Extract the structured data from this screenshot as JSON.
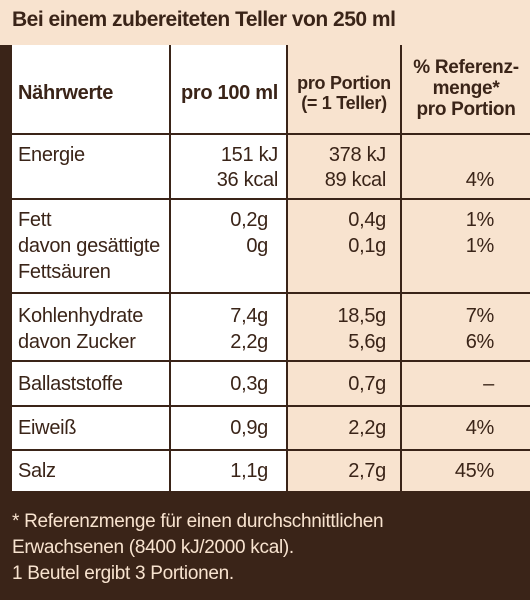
{
  "heading": "Bei einem zubereiteten Teller von 250 ml",
  "columns": {
    "name": "Nährwerte",
    "per100": "pro 100 ml",
    "portion_line1": "pro Portion",
    "portion_line2": "(= 1 Teller)",
    "ref_line1": "% Referenz-",
    "ref_line2": "menge*",
    "ref_line3": "pro Portion"
  },
  "rows": {
    "energie": {
      "name": "Energie",
      "per100_kj": "151 kJ",
      "per100_kcal": "36 kcal",
      "portion_kj": "378 kJ",
      "portion_kcal": "89 kcal",
      "ref": "4%"
    },
    "fett": {
      "name": "Fett",
      "per100": "0,2g",
      "portion": "0,4g",
      "ref": "1%"
    },
    "gesaettigt": {
      "name_line1": "davon gesättigte",
      "name_line2": "Fettsäuren",
      "per100": "0g",
      "portion": "0,1g",
      "ref": "1%"
    },
    "kohlenhydrate": {
      "name": "Kohlenhydrate",
      "per100": "7,4g",
      "portion": "18,5g",
      "ref": "7%"
    },
    "zucker": {
      "name": "davon Zucker",
      "per100": "2,2g",
      "portion": "5,6g",
      "ref": "6%"
    },
    "ballaststoffe": {
      "name": "Ballaststoffe",
      "per100": "0,3g",
      "portion": "0,7g",
      "ref": "–"
    },
    "eiweiss": {
      "name": "Eiweiß",
      "per100": "0,9g",
      "portion": "2,2g",
      "ref": "4%"
    },
    "salz": {
      "name": "Salz",
      "per100": "1,1g",
      "portion": "2,7g",
      "ref": "45%"
    }
  },
  "footer": {
    "line1": "* Referenzmenge für einen durchschnittlichen",
    "line2": "Erwachsenen (8400 kJ/2000 kcal).",
    "line3": "1 Beutel ergibt 3 Portionen."
  },
  "colors": {
    "brown": "#3a2418",
    "cream": "#f8e3cf",
    "white": "#ffffff"
  }
}
